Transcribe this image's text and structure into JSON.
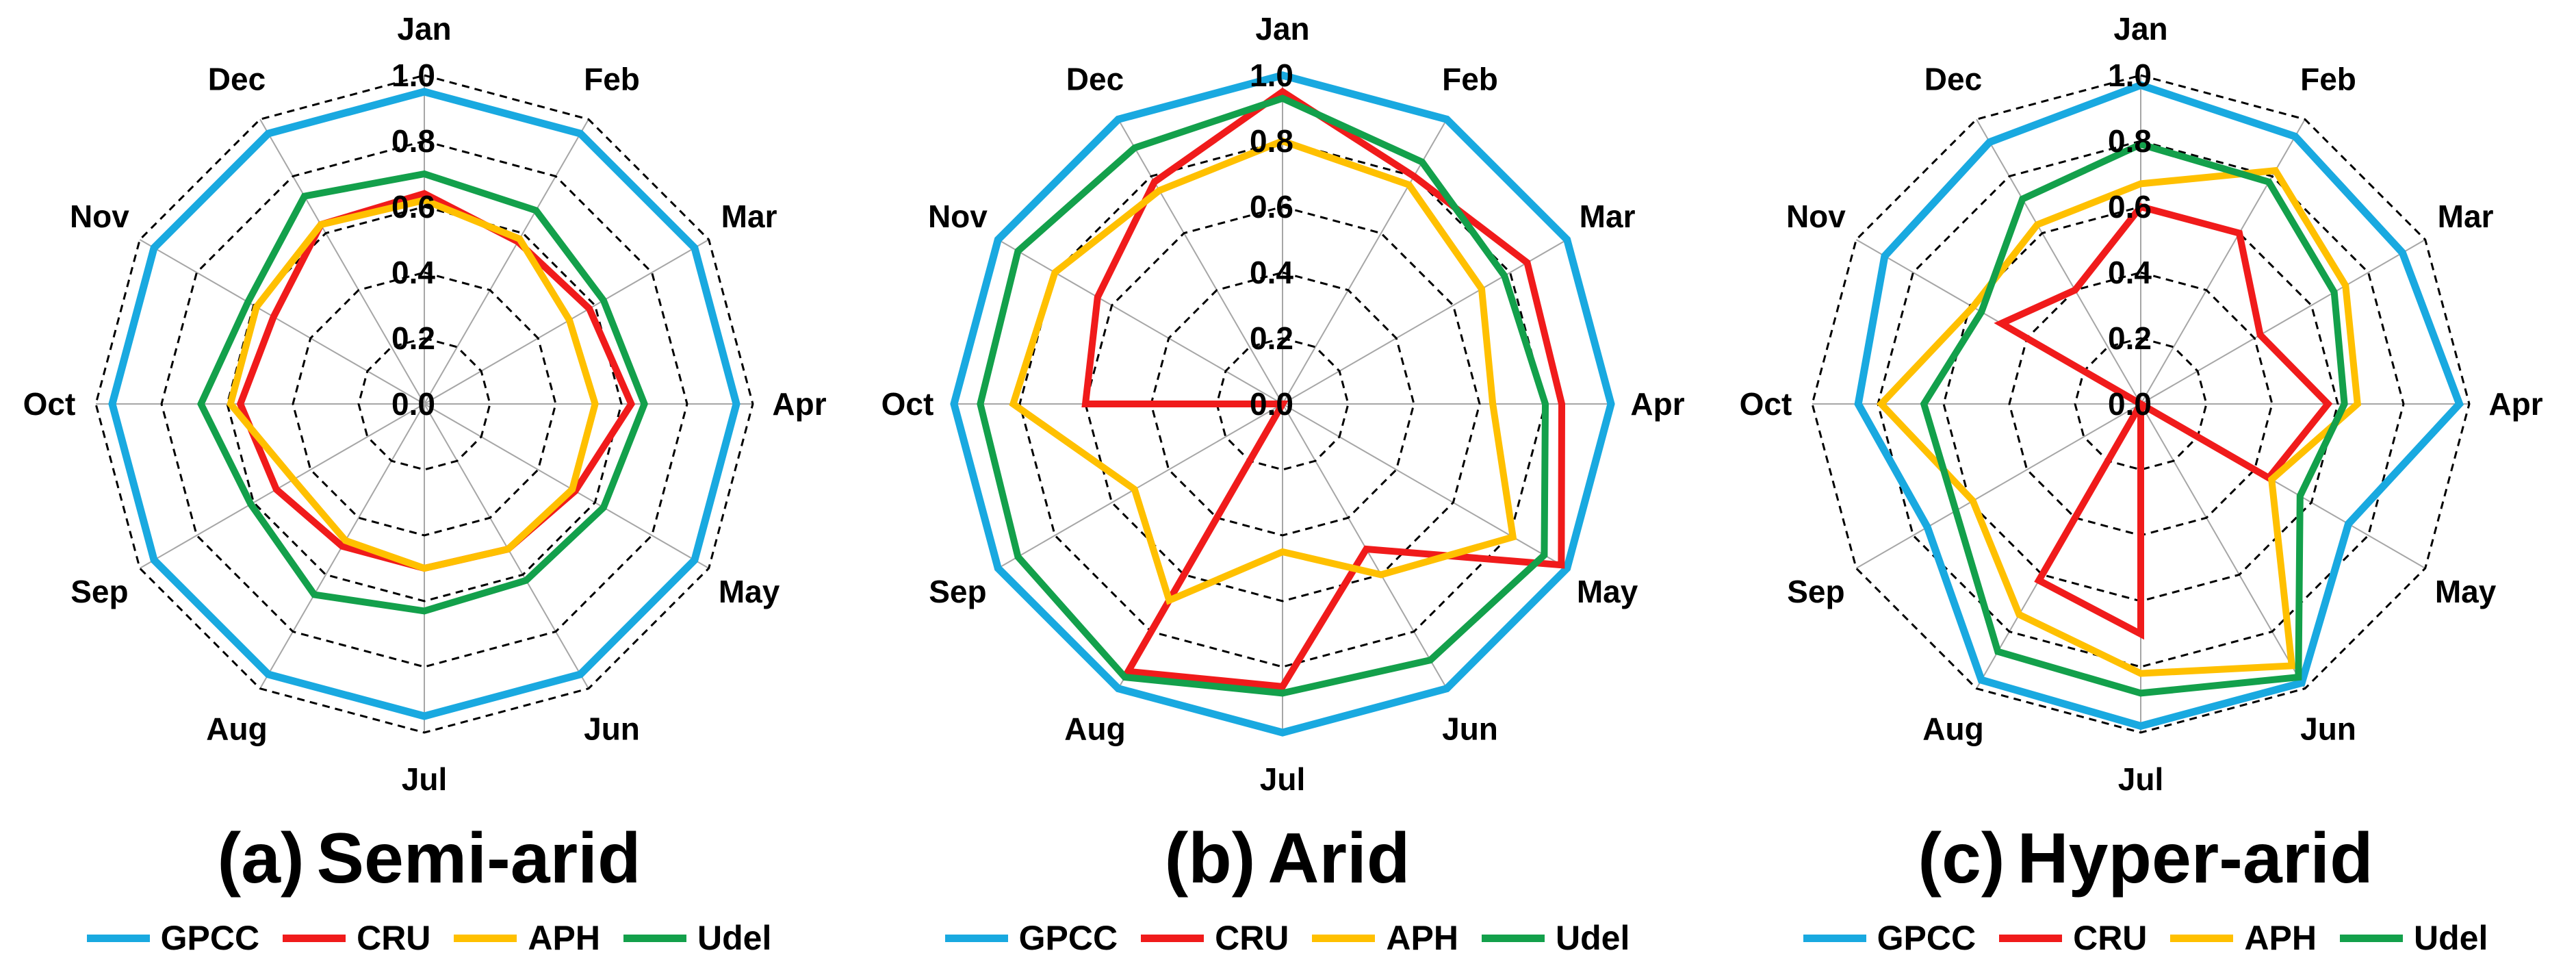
{
  "chart_data": [
    {
      "type": "radar",
      "panel_letter": "(a)",
      "title": "Semi-arid",
      "categories": [
        "Jan",
        "Feb",
        "Mar",
        "Apr",
        "May",
        "Jun",
        "Jul",
        "Aug",
        "Sep",
        "Oct",
        "Nov",
        "Dec"
      ],
      "rlim": [
        0.0,
        1.0
      ],
      "rticks": [
        "0.0",
        "0.2",
        "0.4",
        "0.6",
        "0.8",
        "1.0"
      ],
      "series": [
        {
          "name": "GPCC",
          "color": "#19A9E0",
          "values": [
            0.95,
            0.95,
            0.95,
            0.95,
            0.95,
            0.95,
            0.95,
            0.95,
            0.95,
            0.95,
            0.95,
            0.95
          ]
        },
        {
          "name": "CRU",
          "color": "#F01B1B",
          "values": [
            0.64,
            0.57,
            0.58,
            0.63,
            0.53,
            0.51,
            0.5,
            0.5,
            0.52,
            0.56,
            0.53,
            0.63
          ]
        },
        {
          "name": "APH",
          "color": "#FFC000",
          "values": [
            0.62,
            0.58,
            0.51,
            0.52,
            0.52,
            0.51,
            0.5,
            0.48,
            0.46,
            0.59,
            0.59,
            0.63
          ]
        },
        {
          "name": "Udel",
          "color": "#13A04B",
          "values": [
            0.7,
            0.68,
            0.63,
            0.67,
            0.63,
            0.62,
            0.63,
            0.67,
            0.61,
            0.68,
            0.62,
            0.73
          ]
        }
      ]
    },
    {
      "type": "radar",
      "panel_letter": "(b)",
      "title": "Arid",
      "categories": [
        "Jan",
        "Feb",
        "Mar",
        "Apr",
        "May",
        "Jun",
        "Jul",
        "Aug",
        "Sep",
        "Oct",
        "Nov",
        "Dec"
      ],
      "rlim": [
        0.0,
        1.0
      ],
      "rticks": [
        "0.0",
        "0.2",
        "0.4",
        "0.6",
        "0.8",
        "1.0"
      ],
      "series": [
        {
          "name": "GPCC",
          "color": "#19A9E0",
          "values": [
            1.0,
            1.0,
            1.0,
            1.0,
            1.0,
            1.0,
            1.0,
            1.0,
            1.0,
            1.0,
            1.0,
            1.0
          ]
        },
        {
          "name": "CRU",
          "color": "#F01B1B",
          "values": [
            0.95,
            0.8,
            0.86,
            0.85,
            0.98,
            0.51,
            0.86,
            0.94,
            0.0,
            0.6,
            0.65,
            0.78
          ]
        },
        {
          "name": "APH",
          "color": "#FFC000",
          "values": [
            0.8,
            0.77,
            0.7,
            0.64,
            0.81,
            0.6,
            0.45,
            0.69,
            0.52,
            0.82,
            0.8,
            0.75
          ]
        },
        {
          "name": "Udel",
          "color": "#13A04B",
          "values": [
            0.93,
            0.85,
            0.78,
            0.8,
            0.92,
            0.9,
            0.88,
            0.96,
            0.93,
            0.92,
            0.93,
            0.9
          ]
        }
      ]
    },
    {
      "type": "radar",
      "panel_letter": "(c)",
      "title": "Hyper-arid",
      "categories": [
        "Jan",
        "Feb",
        "Mar",
        "Apr",
        "May",
        "Jun",
        "Jul",
        "Aug",
        "Sep",
        "Oct",
        "Nov",
        "Dec"
      ],
      "rlim": [
        0.0,
        1.0
      ],
      "rticks": [
        "0.0",
        "0.2",
        "0.4",
        "0.6",
        "0.8",
        "1.0"
      ],
      "series": [
        {
          "name": "GPCC",
          "color": "#19A9E0",
          "values": [
            0.97,
            0.94,
            0.92,
            0.97,
            0.73,
            0.98,
            0.98,
            0.97,
            0.75,
            0.86,
            0.9,
            0.92
          ]
        },
        {
          "name": "CRU",
          "color": "#F01B1B",
          "values": [
            0.6,
            0.6,
            0.42,
            0.57,
            0.45,
            0.0,
            0.7,
            0.62,
            0.0,
            0.0,
            0.49,
            0.4
          ]
        },
        {
          "name": "APH",
          "color": "#FFC000",
          "values": [
            0.67,
            0.82,
            0.72,
            0.66,
            0.46,
            0.92,
            0.82,
            0.74,
            0.59,
            0.79,
            0.59,
            0.63
          ]
        },
        {
          "name": "Udel",
          "color": "#13A04B",
          "values": [
            0.79,
            0.78,
            0.68,
            0.62,
            0.56,
            0.96,
            0.88,
            0.87,
            0.65,
            0.66,
            0.56,
            0.72
          ]
        }
      ]
    }
  ]
}
